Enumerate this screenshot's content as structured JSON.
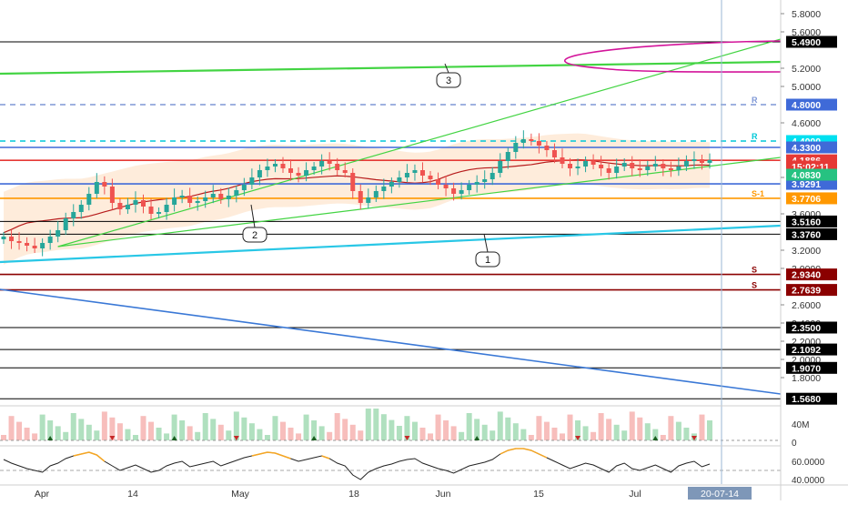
{
  "chart_data": {
    "type": "candlestick",
    "price_axis": {
      "ylim": [
        1.5,
        5.95
      ],
      "ticks": [
        "5.8000",
        "5.6000",
        "5.2000",
        "5.0000",
        "4.6000",
        "4.0000",
        "3.6000",
        "3.2000",
        "3.0000",
        "2.6000",
        "2.4000",
        "2.2000",
        "2.0000",
        "1.8000"
      ]
    },
    "time_axis": {
      "labels": [
        "Apr",
        "14",
        "May",
        "18",
        "Jun",
        "15",
        "Jul"
      ],
      "current": "20-07-14"
    },
    "levels": [
      {
        "price": 5.49,
        "label": "5.4900",
        "color": "#000000",
        "tag_bg": "#000000"
      },
      {
        "price": 4.8,
        "label": "4.8000",
        "color": "#7e97d6",
        "tag_bg": "#3f6ad8",
        "dashed": true,
        "marker": "R"
      },
      {
        "price": 4.4,
        "label": "4.4000",
        "color": "#00c8d8",
        "tag_bg": "#00e0f0",
        "dashed": true,
        "marker": "R"
      },
      {
        "price": 4.33,
        "label": "4.3300",
        "color": "#3f6ad8",
        "tag_bg": "#3f6ad8"
      },
      {
        "price": 4.1886,
        "label": "4.1886",
        "color": "#e53935",
        "tag_bg": "#e53935"
      },
      {
        "price": 3.9291,
        "label": "3.9291",
        "color": "#3f6ad8",
        "tag_bg": "#3f6ad8"
      },
      {
        "price": 3.7706,
        "label": "3.7706",
        "color": "#ff9800",
        "tag_bg": "#ff9800",
        "marker": "S-1"
      },
      {
        "price": 3.516,
        "label": "3.5160",
        "color": "#000000",
        "tag_bg": "#000000"
      },
      {
        "price": 3.376,
        "label": "3.3760",
        "color": "#000000",
        "tag_bg": "#000000"
      },
      {
        "price": 2.934,
        "label": "2.9340",
        "color": "#8b0000",
        "tag_bg": "#8b0000",
        "marker": "S"
      },
      {
        "price": 2.7639,
        "label": "2.7639",
        "color": "#8b0000",
        "tag_bg": "#8b0000",
        "marker": "S"
      },
      {
        "price": 2.35,
        "label": "2.3500",
        "color": "#000000",
        "tag_bg": "#000000"
      },
      {
        "price": 2.1092,
        "label": "2.1092",
        "color": "#000000",
        "tag_bg": "#000000"
      },
      {
        "price": 1.907,
        "label": "1.9070",
        "color": "#000000",
        "tag_bg": "#000000"
      },
      {
        "price": 1.568,
        "label": "1.5680",
        "color": "#000000",
        "tag_bg": "#000000"
      }
    ],
    "countdown": {
      "label": "15:02:11",
      "price": 4.12,
      "tag_bg": "#e53935"
    },
    "green_tag": {
      "label": "4.0830",
      "price": 4.03,
      "tag_bg": "#26c281"
    },
    "trendline_labels": [
      "3",
      "2",
      "1"
    ],
    "closes": [
      3.35,
      3.3,
      3.28,
      3.25,
      3.22,
      3.28,
      3.35,
      3.42,
      3.55,
      3.62,
      3.7,
      3.82,
      3.95,
      3.9,
      3.72,
      3.65,
      3.7,
      3.75,
      3.68,
      3.6,
      3.62,
      3.7,
      3.78,
      3.8,
      3.72,
      3.74,
      3.78,
      3.82,
      3.76,
      3.8,
      3.86,
      3.92,
      4.0,
      4.08,
      4.12,
      4.15,
      4.1,
      4.05,
      4.02,
      4.08,
      4.12,
      4.18,
      4.15,
      4.08,
      4.05,
      3.85,
      3.72,
      3.78,
      3.85,
      3.9,
      3.95,
      4.0,
      4.05,
      4.08,
      4.02,
      3.98,
      3.92,
      3.88,
      3.82,
      3.86,
      3.92,
      3.95,
      3.98,
      4.05,
      4.18,
      4.28,
      4.38,
      4.42,
      4.4,
      4.35,
      4.3,
      4.22,
      4.15,
      4.1,
      4.12,
      4.18,
      4.14,
      4.1,
      4.05,
      4.12,
      4.16,
      4.1,
      4.08,
      4.12,
      4.15,
      4.1,
      4.08,
      4.12,
      4.18,
      4.2,
      4.16,
      4.19
    ],
    "indicator_volume": {
      "ylabel": "40M",
      "zero_label": "0"
    },
    "indicator_oscillator": {
      "ticks": [
        "60.0000",
        "40.0000"
      ],
      "ylim": [
        35,
        75
      ]
    },
    "oscillator_values": [
      62,
      58,
      55,
      52,
      50,
      48,
      55,
      58,
      63,
      66,
      68,
      70,
      67,
      60,
      55,
      50,
      53,
      56,
      52,
      48,
      50,
      55,
      58,
      60,
      54,
      56,
      58,
      60,
      55,
      58,
      61,
      64,
      66,
      68,
      70,
      69,
      66,
      63,
      60,
      62,
      64,
      66,
      63,
      58,
      55,
      45,
      40,
      48,
      52,
      55,
      57,
      60,
      62,
      63,
      58,
      55,
      52,
      50,
      47,
      51,
      55,
      57,
      59,
      62,
      68,
      72,
      74,
      74,
      72,
      68,
      64,
      60,
      56,
      52,
      55,
      58,
      56,
      52,
      48,
      55,
      58,
      52,
      50,
      53,
      56,
      52,
      48,
      55,
      58,
      60,
      54,
      57
    ]
  }
}
